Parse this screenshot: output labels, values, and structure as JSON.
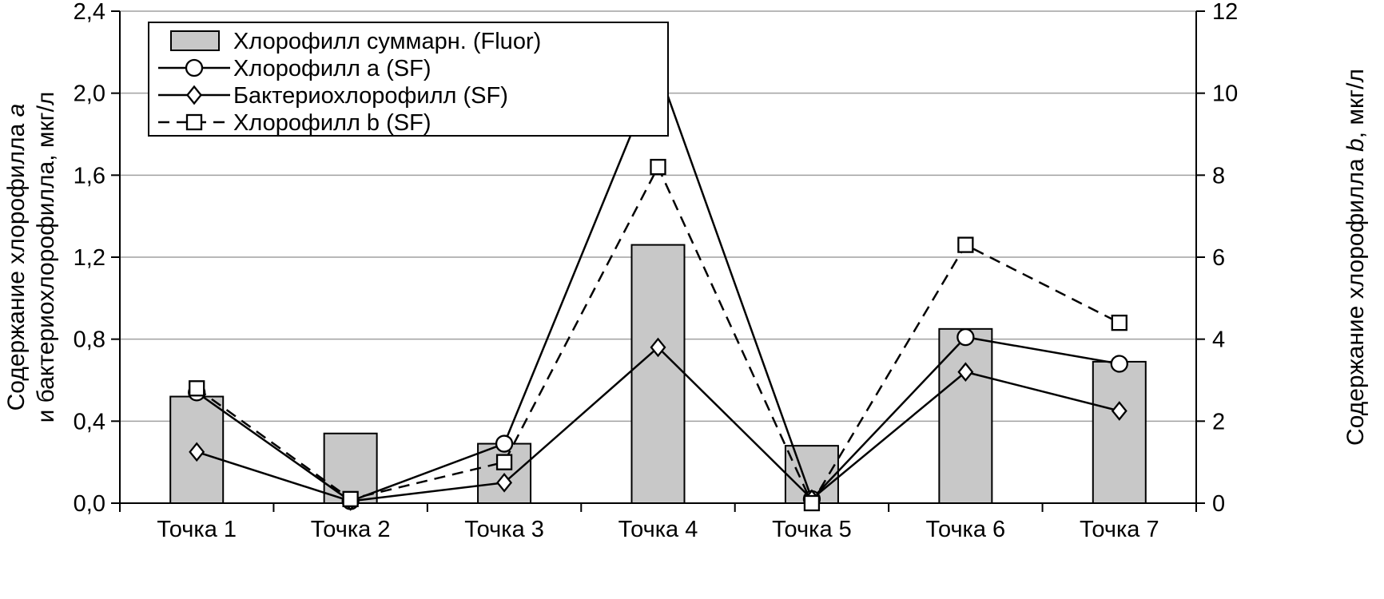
{
  "chart_data": {
    "type": "bar",
    "subtype": "combo-bar-line-dual-axis",
    "categories": [
      "Точка 1",
      "Точка 2",
      "Точка 3",
      "Точка 4",
      "Точка 5",
      "Точка 6",
      "Точка 7"
    ],
    "series": [
      {
        "name": "Хлорофилл суммарн. (Fluor)",
        "type": "bar",
        "axis": "left",
        "marker": "none",
        "dash": false,
        "values": [
          0.52,
          0.34,
          0.29,
          1.26,
          0.28,
          0.85,
          0.69
        ]
      },
      {
        "name": "Хлорофилл a (SF)",
        "type": "line",
        "axis": "left",
        "marker": "circle",
        "dash": false,
        "values": [
          0.54,
          0.01,
          0.29,
          2.12,
          0.02,
          0.81,
          0.68
        ]
      },
      {
        "name": "Бактериохлорофилл (SF)",
        "type": "line",
        "axis": "left",
        "marker": "diamond",
        "dash": false,
        "values": [
          0.25,
          0.01,
          0.1,
          0.76,
          0.02,
          0.64,
          0.45
        ]
      },
      {
        "name": "Хлорофилл b (SF)",
        "type": "line",
        "axis": "right",
        "marker": "square",
        "dash": true,
        "values": [
          2.8,
          0.1,
          1.0,
          8.2,
          0.0,
          6.3,
          4.4
        ]
      }
    ],
    "left_axis": {
      "min": 0,
      "max": 2.4,
      "step": 0.4,
      "tick_labels": [
        "0,0",
        "0,4",
        "0,8",
        "1,2",
        "1,6",
        "2,0",
        "2,4"
      ],
      "title_lines": [
        [
          {
            "t": "Содержание хлорофилла "
          },
          {
            "t": "a",
            "italic": true
          }
        ],
        [
          {
            "t": "и бактериохлорофилла, мкг/л"
          }
        ]
      ]
    },
    "right_axis": {
      "min": 0,
      "max": 12,
      "step": 2,
      "tick_labels": [
        "0",
        "2",
        "4",
        "6",
        "8",
        "10",
        "12"
      ],
      "title": [
        {
          "t": "Содержание хлорофилла "
        },
        {
          "t": "b",
          "italic": true
        },
        {
          "t": ", мкг/л"
        }
      ]
    },
    "grid": true,
    "legend_position": "top-left"
  },
  "colors": {
    "bar_fill": "#c8c8c8",
    "grid": "#a0a0a0",
    "line": "#000000",
    "background": "#ffffff"
  }
}
